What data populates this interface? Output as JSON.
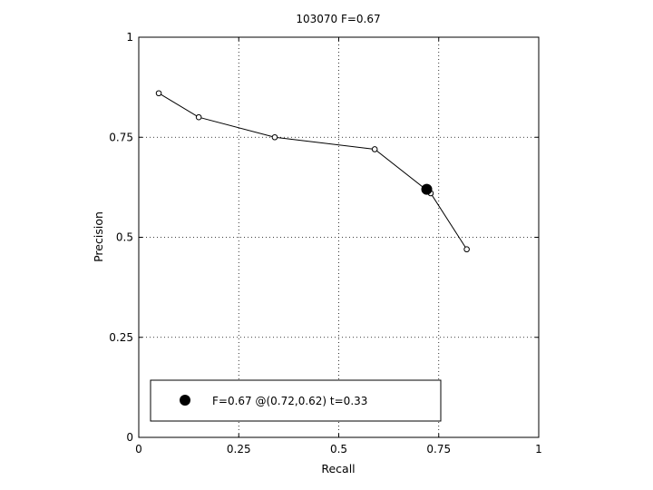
{
  "chart_data": {
    "type": "line",
    "title": "103070 F=0.67",
    "xlabel": "Recall",
    "ylabel": "Precision",
    "xlim": [
      0,
      1
    ],
    "ylim": [
      0,
      1
    ],
    "grid": true,
    "grid_style": "dotted",
    "x_ticks": [
      0,
      0.25,
      0.5,
      0.75,
      1
    ],
    "x_tick_labels": [
      "0",
      "0.25",
      "0.5",
      "0.75",
      "1"
    ],
    "y_ticks": [
      0,
      0.25,
      0.5,
      0.75,
      1
    ],
    "y_tick_labels": [
      "0",
      "0.25",
      "0.5",
      "0.75",
      "1"
    ],
    "series": [
      {
        "marker": "open-circle",
        "color": "#000000",
        "x": [
          0.05,
          0.15,
          0.34,
          0.59,
          0.73,
          0.82
        ],
        "y": [
          0.86,
          0.8,
          0.75,
          0.72,
          0.61,
          0.47
        ]
      }
    ],
    "highlight_point": {
      "x": 0.72,
      "y": 0.62,
      "marker": "filled-circle",
      "color": "#000000"
    },
    "legend": {
      "placement": "bottom-left",
      "text": "F=0.67 @(0.72,0.62) t=0.33"
    }
  }
}
